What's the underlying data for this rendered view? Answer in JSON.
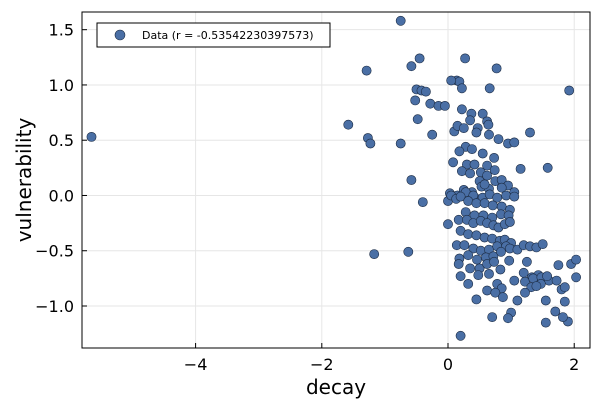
{
  "chart_data": {
    "type": "scatter",
    "title": "",
    "xlabel": "decay",
    "ylabel": "vulnerability",
    "xlim": [
      -5.8,
      2.25
    ],
    "ylim": [
      -1.38,
      1.66
    ],
    "x_ticks": [
      -4,
      -2,
      0,
      2
    ],
    "x_tick_labels": [
      "−4",
      "−2",
      "0",
      "2"
    ],
    "y_ticks": [
      -1.0,
      -0.5,
      0.0,
      0.5,
      1.0,
      1.5
    ],
    "y_tick_labels": [
      "−1.0",
      "−0.5",
      "0.0",
      "0.5",
      "1.0",
      "1.5"
    ],
    "grid": true,
    "legend_position": "top-left",
    "colors": {
      "marker": "#4a6fa5",
      "marker_edge": "#1c2c44",
      "grid": "#e6e6e6",
      "frame": "#000000"
    },
    "series": [
      {
        "name": "Data (r = -0.53542230397573)",
        "x": [
          -5.65,
          -0.75,
          -0.45,
          0.27,
          0.77,
          -1.29,
          -0.58,
          0.14,
          0.18,
          0.05,
          -0.5,
          -0.42,
          -0.35,
          0.66,
          0.22,
          -0.28,
          -0.15,
          -0.52,
          -0.05,
          0.22,
          0.37,
          0.55,
          0.62,
          0.35,
          0.47,
          0.64,
          -0.48,
          -1.58,
          -1.27,
          -1.23,
          -0.75,
          -0.25,
          0.1,
          0.15,
          0.25,
          0.45,
          0.65,
          0.8,
          0.95,
          1.05,
          1.3,
          0.28,
          0.18,
          0.38,
          0.55,
          0.73,
          0.3,
          0.42,
          0.08,
          0.22,
          0.35,
          0.52,
          0.62,
          0.74,
          0.5,
          0.62,
          0.75,
          0.85,
          0.95,
          0.53,
          0.38,
          0.25,
          0.45,
          0.65,
          0.85,
          1.05,
          1.15,
          1.58,
          0.58,
          0.03,
          0.15,
          0.28,
          0.4,
          0.55,
          0.66,
          0.78,
          0.92,
          1.05,
          0.0,
          0.05,
          0.13,
          0.2,
          0.32,
          0.45,
          0.58,
          0.71,
          0.85,
          0.98,
          0.28,
          0.42,
          0.56,
          0.7,
          0.84,
          0.96,
          -0.4,
          -0.58,
          0.17,
          0.3,
          0.4,
          0.52,
          0.62,
          0.72,
          0.8,
          0.9,
          0.98,
          0.2,
          0.32,
          0.45,
          0.58,
          0.7,
          0.82,
          0.9,
          1.0,
          0.0,
          0.14,
          0.26,
          0.4,
          0.52,
          0.65,
          0.78,
          0.92,
          0.18,
          0.32,
          0.46,
          0.6,
          0.72,
          0.84,
          0.98,
          1.1,
          1.2,
          1.3,
          1.4,
          1.5,
          1.25,
          0.17,
          0.35,
          0.5,
          0.62,
          0.73,
          0.83,
          0.97,
          1.2,
          1.33,
          1.43,
          1.57,
          1.75,
          1.95,
          -1.17,
          -0.63,
          0.2,
          0.32,
          0.48,
          0.65,
          0.78,
          0.85,
          1.05,
          1.22,
          1.35,
          1.48,
          1.6,
          1.8,
          2.03,
          0.45,
          0.62,
          0.75,
          0.87,
          1.1,
          1.32,
          1.47,
          1.57,
          1.72,
          1.85,
          2.03,
          1.22,
          1.4,
          1.55,
          1.7,
          1.85,
          1.9,
          1.55,
          1.82,
          1.0,
          0.7,
          0.95,
          0.2,
          1.92
        ],
        "y": [
          0.53,
          1.58,
          1.24,
          1.24,
          1.15,
          1.13,
          1.17,
          1.04,
          1.03,
          1.04,
          0.96,
          0.95,
          0.94,
          0.97,
          0.97,
          0.83,
          0.81,
          0.86,
          0.81,
          0.78,
          0.74,
          0.74,
          0.67,
          0.68,
          0.61,
          0.64,
          0.69,
          0.64,
          0.52,
          0.47,
          0.47,
          0.55,
          0.58,
          0.63,
          0.61,
          0.57,
          0.55,
          0.51,
          0.47,
          0.48,
          0.57,
          0.44,
          0.4,
          0.42,
          0.38,
          0.34,
          0.28,
          0.28,
          0.3,
          0.22,
          0.2,
          0.21,
          0.27,
          0.23,
          0.13,
          0.18,
          0.13,
          0.14,
          0.09,
          0.08,
          0.03,
          0.05,
          -0.03,
          0.06,
          0.07,
          0.03,
          0.24,
          0.25,
          0.1,
          0.02,
          0.0,
          0.03,
          0.0,
          -0.02,
          0.01,
          -0.02,
          0.0,
          -0.01,
          -0.05,
          0.0,
          -0.03,
          -0.01,
          -0.05,
          -0.07,
          -0.07,
          -0.09,
          -0.1,
          -0.13,
          -0.15,
          -0.18,
          -0.18,
          -0.2,
          -0.17,
          -0.18,
          -0.06,
          0.14,
          -0.22,
          -0.22,
          -0.25,
          -0.23,
          -0.25,
          -0.27,
          -0.29,
          -0.26,
          -0.24,
          -0.32,
          -0.35,
          -0.36,
          -0.38,
          -0.39,
          -0.41,
          -0.4,
          -0.43,
          -0.26,
          -0.45,
          -0.45,
          -0.48,
          -0.5,
          -0.49,
          -0.46,
          -0.46,
          -0.57,
          -0.54,
          -0.58,
          -0.56,
          -0.55,
          -0.51,
          -0.48,
          -0.49,
          -0.45,
          -0.46,
          -0.47,
          -0.44,
          -0.6,
          -0.62,
          -0.66,
          -0.66,
          -0.62,
          -0.6,
          -0.67,
          -0.59,
          -0.7,
          -0.74,
          -0.72,
          -0.74,
          -0.63,
          -0.62,
          -0.53,
          -0.51,
          -0.73,
          -0.8,
          -0.72,
          -0.71,
          -0.8,
          -0.84,
          -0.77,
          -0.78,
          -0.75,
          -0.74,
          -0.77,
          -0.85,
          -0.58,
          -0.94,
          -0.86,
          -0.88,
          -0.92,
          -0.95,
          -0.83,
          -0.8,
          -0.73,
          -0.77,
          -0.83,
          -0.74,
          -0.88,
          -0.82,
          -0.95,
          -1.05,
          -0.96,
          -1.14,
          -1.15,
          -1.1,
          -1.06,
          -1.1,
          -1.11,
          -1.27,
          0.95
        ]
      }
    ]
  }
}
